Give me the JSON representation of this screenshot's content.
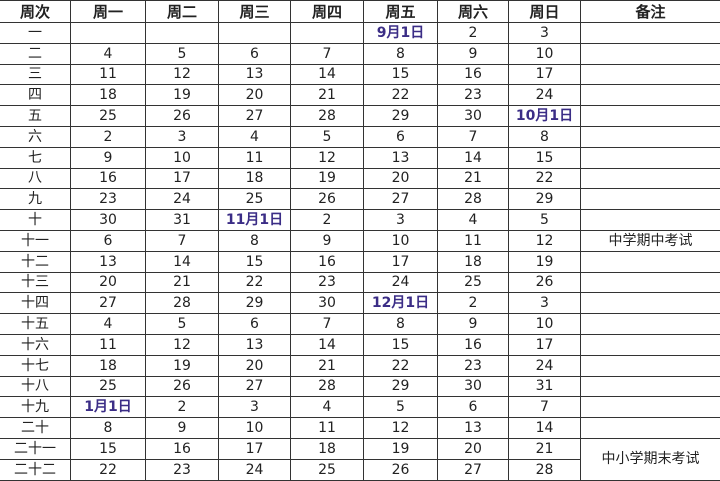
{
  "headers": [
    "周次",
    "周一",
    "周二",
    "周三",
    "周四",
    "周五",
    "周六",
    "周日",
    "备注"
  ],
  "highlight_color": "#3b2d86",
  "rows": [
    {
      "week": "一",
      "days": [
        "",
        "",
        "",
        "",
        "9月1日",
        "2",
        "3"
      ],
      "note": ""
    },
    {
      "week": "二",
      "days": [
        "4",
        "5",
        "6",
        "7",
        "8",
        "9",
        "10"
      ],
      "note": ""
    },
    {
      "week": "三",
      "days": [
        "11",
        "12",
        "13",
        "14",
        "15",
        "16",
        "17"
      ],
      "note": ""
    },
    {
      "week": "四",
      "days": [
        "18",
        "19",
        "20",
        "21",
        "22",
        "23",
        "24"
      ],
      "note": ""
    },
    {
      "week": "五",
      "days": [
        "25",
        "26",
        "27",
        "28",
        "29",
        "30",
        "10月1日"
      ],
      "note": ""
    },
    {
      "week": "六",
      "days": [
        "2",
        "3",
        "4",
        "5",
        "6",
        "7",
        "8"
      ],
      "note": ""
    },
    {
      "week": "七",
      "days": [
        "9",
        "10",
        "11",
        "12",
        "13",
        "14",
        "15"
      ],
      "note": ""
    },
    {
      "week": "八",
      "days": [
        "16",
        "17",
        "18",
        "19",
        "20",
        "21",
        "22"
      ],
      "note": ""
    },
    {
      "week": "九",
      "days": [
        "23",
        "24",
        "25",
        "26",
        "27",
        "28",
        "29"
      ],
      "note": ""
    },
    {
      "week": "十",
      "days": [
        "30",
        "31",
        "11月1日",
        "2",
        "3",
        "4",
        "5"
      ],
      "note": ""
    },
    {
      "week": "十一",
      "days": [
        "6",
        "7",
        "8",
        "9",
        "10",
        "11",
        "12"
      ],
      "note": "中学期中考试"
    },
    {
      "week": "十二",
      "days": [
        "13",
        "14",
        "15",
        "16",
        "17",
        "18",
        "19"
      ],
      "note": ""
    },
    {
      "week": "十三",
      "days": [
        "20",
        "21",
        "22",
        "23",
        "24",
        "25",
        "26"
      ],
      "note": ""
    },
    {
      "week": "十四",
      "days": [
        "27",
        "28",
        "29",
        "30",
        "12月1日",
        "2",
        "3"
      ],
      "note": ""
    },
    {
      "week": "十五",
      "days": [
        "4",
        "5",
        "6",
        "7",
        "8",
        "9",
        "10"
      ],
      "note": ""
    },
    {
      "week": "十六",
      "days": [
        "11",
        "12",
        "13",
        "14",
        "15",
        "16",
        "17"
      ],
      "note": ""
    },
    {
      "week": "十七",
      "days": [
        "18",
        "19",
        "20",
        "21",
        "22",
        "23",
        "24"
      ],
      "note": ""
    },
    {
      "week": "十八",
      "days": [
        "25",
        "26",
        "27",
        "28",
        "29",
        "30",
        "31"
      ],
      "note": ""
    },
    {
      "week": "十九",
      "days": [
        "1月1日",
        "2",
        "3",
        "4",
        "5",
        "6",
        "7"
      ],
      "note": ""
    },
    {
      "week": "二十",
      "days": [
        "8",
        "9",
        "10",
        "11",
        "12",
        "13",
        "14"
      ],
      "note": ""
    },
    {
      "week": "二十一",
      "days": [
        "15",
        "16",
        "17",
        "18",
        "19",
        "20",
        "21"
      ],
      "note": "中小学期末考试",
      "note_rowspan": 2
    },
    {
      "week": "二十二",
      "days": [
        "22",
        "23",
        "24",
        "25",
        "26",
        "27",
        "28"
      ],
      "skip_note": true
    }
  ]
}
